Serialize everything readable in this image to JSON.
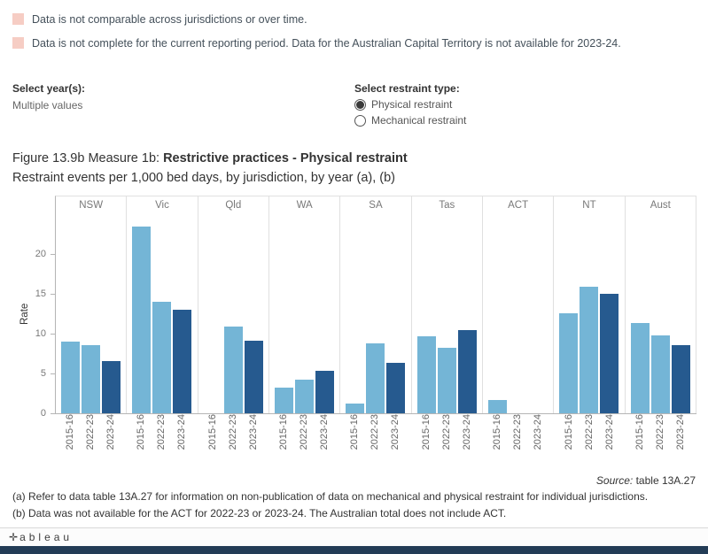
{
  "notes": [
    "Data is not comparable across jurisdictions or over time.",
    "Data is not complete for the current reporting period. Data for the Australian Capital Territory is not available for 2023-24."
  ],
  "filters": {
    "year_label": "Select year(s):",
    "year_value": "Multiple values",
    "type_label": "Select restraint type:",
    "options": [
      {
        "label": "Physical restraint",
        "selected": true
      },
      {
        "label": "Mechanical restraint",
        "selected": false
      }
    ]
  },
  "title": {
    "prefix": "Figure 13.9b Measure 1b: ",
    "bold": "Restrictive practices - Physical restraint",
    "subtitle": "Restraint events per 1,000 bed days, by jurisdiction, by year (a), (b)"
  },
  "chart_data": {
    "type": "bar",
    "title": "Restraint events per 1,000 bed days, by jurisdiction, by year",
    "ylabel": "Rate",
    "xlabel": "",
    "ylim": [
      0,
      25
    ],
    "yticks": [
      0,
      5,
      10,
      15,
      20
    ],
    "grid": false,
    "categories": [
      "NSW",
      "Vic",
      "Qld",
      "WA",
      "SA",
      "Tas",
      "ACT",
      "NT",
      "Aust"
    ],
    "series": [
      {
        "name": "2015-16",
        "color": "#74b5d6",
        "values": [
          8.9,
          23.4,
          null,
          3.2,
          1.2,
          9.6,
          1.6,
          12.5,
          11.3
        ]
      },
      {
        "name": "2022-23",
        "color": "#74b5d6",
        "values": [
          8.5,
          13.9,
          10.8,
          4.2,
          8.7,
          8.2,
          null,
          15.8,
          9.7
        ]
      },
      {
        "name": "2023-24",
        "color": "#265a8f",
        "values": [
          6.5,
          13.0,
          9.1,
          5.3,
          6.3,
          10.4,
          null,
          14.9,
          8.5
        ]
      }
    ]
  },
  "footnotes": {
    "source_label": "Source:",
    "source_rest": " table 13A.27",
    "a": "(a) Refer to data table 13A.27 for information on non-publication of data on mechanical and physical restraint for individual jurisdictions.",
    "b": "(b) Data was not available for the ACT for 2022-23 or 2023-24. The Australian total does not include ACT."
  },
  "footer": {
    "logo_mark": "✛",
    "logo_text": "ableau"
  },
  "colors": {
    "bar_light": "#74b5d6",
    "bar_dark": "#265a8f",
    "note_swatch": "#f6cdc4",
    "bottom_bar": "#233c56"
  }
}
